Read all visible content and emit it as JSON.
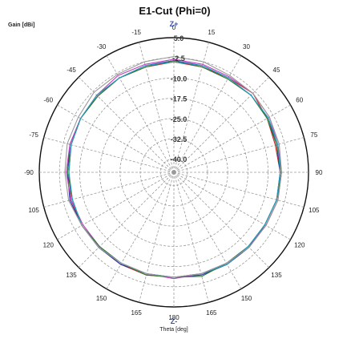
{
  "chart_data": {
    "type": "polar-line",
    "title": "E1-Cut (Phi=0)",
    "ylabel": "Gain [dBi]",
    "xlabel": "Theta [deg]",
    "top_label": "Z+",
    "bottom_label": "Z-",
    "r_range": [
      -45.0,
      5.0
    ],
    "r_ticks": [
      "5.0",
      "-2.5",
      "-10.0",
      "-17.5",
      "-25.0",
      "-32.5",
      "-40.0"
    ],
    "r_tick_values": [
      5.0,
      -2.5,
      -10.0,
      -17.5,
      -25.0,
      -32.5,
      -40.0
    ],
    "theta_ticks": [
      0,
      15,
      30,
      45,
      60,
      75,
      90,
      105,
      120,
      135,
      150,
      165,
      180,
      -165,
      -150,
      -135,
      -120,
      -105,
      -90,
      -75,
      -60,
      -45,
      -30,
      -15
    ],
    "theta_tick_labels": [
      "0",
      "15",
      "30",
      "45",
      "60",
      "75",
      "90",
      "105",
      "120",
      "135",
      "150",
      "165",
      "180",
      "165",
      "150",
      "135",
      "120",
      "105",
      "-90",
      "-75",
      "-60",
      "-45",
      "-30",
      "-15"
    ],
    "grid": true,
    "theta_deg": [
      0,
      15,
      30,
      45,
      60,
      75,
      90,
      105,
      120,
      135,
      150,
      165,
      180,
      195,
      210,
      225,
      240,
      255,
      270,
      285,
      300,
      315,
      330,
      345
    ],
    "series": [
      {
        "color": "#cc2222",
        "r": [
          -4.0,
          -4.5,
          -4.5,
          -3.5,
          -5.0,
          -6.0,
          -5.5,
          -5.0,
          -5.5,
          -6.0,
          -5.5,
          -6.0,
          -6.0,
          -5.5,
          -5.5,
          -5.5,
          -5.5,
          -5.5,
          -6.0,
          -5.5,
          -5.0,
          -5.0,
          -4.5,
          -4.5
        ]
      },
      {
        "color": "#2233aa",
        "r": [
          -3.5,
          -4.0,
          -4.5,
          -4.5,
          -4.5,
          -5.5,
          -5.5,
          -5.5,
          -6.0,
          -5.5,
          -5.5,
          -5.5,
          -6.0,
          -6.0,
          -5.5,
          -5.5,
          -5.5,
          -5.0,
          -5.5,
          -5.0,
          -5.0,
          -4.5,
          -4.5,
          -4.0
        ]
      },
      {
        "color": "#c040c0",
        "r": [
          -3.0,
          -3.5,
          -4.0,
          -3.5,
          -4.0,
          -5.0,
          -5.0,
          -5.0,
          -5.5,
          -6.0,
          -6.0,
          -6.0,
          -5.5,
          -6.0,
          -6.0,
          -6.0,
          -6.0,
          -5.5,
          -5.0,
          -5.0,
          -5.0,
          -4.5,
          -3.5,
          -3.5
        ]
      },
      {
        "color": "#2a7a2a",
        "r": [
          -3.5,
          -4.5,
          -5.0,
          -4.5,
          -5.0,
          -5.5,
          -5.0,
          -5.5,
          -6.0,
          -6.0,
          -6.0,
          -5.0,
          -6.0,
          -5.5,
          -6.0,
          -6.0,
          -5.5,
          -6.0,
          -5.5,
          -5.5,
          -5.0,
          -5.0,
          -4.5,
          -4.5
        ]
      },
      {
        "color": "#22a0c0",
        "r": [
          -4.0,
          -4.0,
          -4.5,
          -4.5,
          -4.5,
          -5.0,
          -5.5,
          -5.5,
          -6.0,
          -6.0,
          -5.5,
          -6.0,
          -6.0,
          -6.0,
          -6.0,
          -5.5,
          -5.5,
          -6.0,
          -6.0,
          -5.5,
          -5.0,
          -4.5,
          -4.5,
          -4.0
        ]
      },
      {
        "color": "#999999",
        "r": [
          -2.0,
          -2.5,
          -3.5,
          -3.5,
          -4.0,
          -4.5,
          -5.0,
          -5.0,
          -5.5,
          -5.5,
          -6.0,
          -6.0,
          -6.0,
          -6.0,
          -6.0,
          -5.5,
          -5.5,
          -4.5,
          -4.5,
          -4.0,
          -4.0,
          -3.0,
          -3.0,
          -2.5
        ]
      }
    ]
  }
}
